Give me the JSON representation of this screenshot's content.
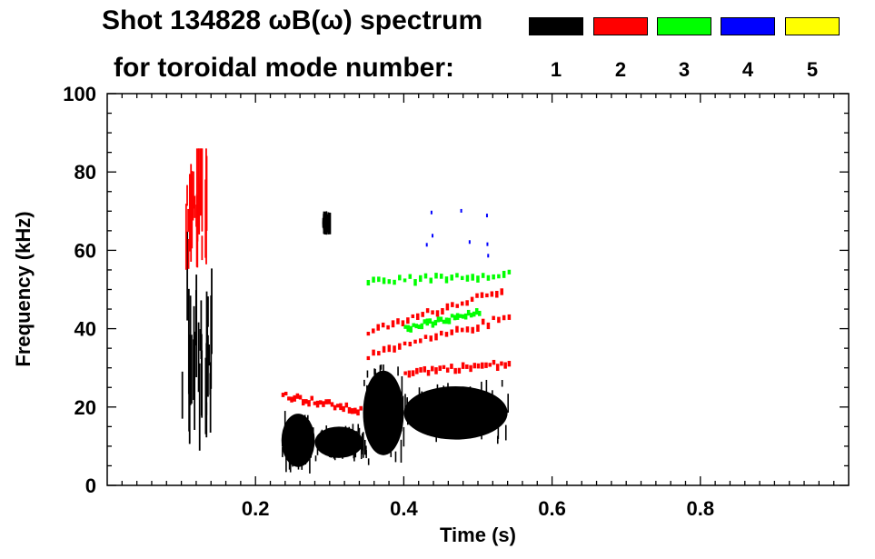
{
  "header": {
    "title_line1": "Shot 134828 ωB(ω) spectrum",
    "title_line2": "for toroidal mode number:"
  },
  "chart_data": {
    "type": "heatmap",
    "xlabel": "Time (s)",
    "ylabel": "Frequency (kHz)",
    "xlim": [
      0.0,
      1.0
    ],
    "ylim": [
      0,
      100
    ],
    "x_ticks": [
      0.2,
      0.4,
      0.6,
      0.8
    ],
    "x_tick_labels": [
      "0.2",
      "0.4",
      "0.6",
      "0.8"
    ],
    "y_ticks": [
      0,
      20,
      40,
      60,
      80,
      100
    ],
    "y_tick_labels": [
      "0",
      "20",
      "40",
      "60",
      "80",
      "100"
    ],
    "legend": {
      "placement": "top",
      "entries": [
        {
          "label": "1",
          "color": "#000000"
        },
        {
          "label": "2",
          "color": "#ff0000"
        },
        {
          "label": "3",
          "color": "#00ff00"
        },
        {
          "label": "4",
          "color": "#0000ff"
        },
        {
          "label": "5",
          "color": "#ffff00"
        }
      ]
    },
    "features": [
      {
        "mode": "1",
        "kind": "band",
        "t": [
          0.1,
          0.14
        ],
        "f": [
          5,
          75
        ]
      },
      {
        "mode": "1",
        "kind": "blob",
        "t": [
          0.235,
          0.28
        ],
        "f": [
          3,
          20
        ]
      },
      {
        "mode": "1",
        "kind": "blob",
        "t": [
          0.28,
          0.345
        ],
        "f": [
          6,
          16
        ]
      },
      {
        "mode": "1",
        "kind": "blob",
        "t": [
          0.345,
          0.4
        ],
        "f": [
          5,
          32
        ]
      },
      {
        "mode": "1",
        "kind": "blob",
        "t": [
          0.4,
          0.54
        ],
        "f": [
          10,
          27
        ]
      },
      {
        "mode": "1",
        "kind": "blob",
        "t": [
          0.29,
          0.3
        ],
        "f": [
          64,
          70
        ]
      },
      {
        "mode": "2",
        "kind": "band",
        "t": [
          0.105,
          0.135
        ],
        "f": [
          55,
          86
        ]
      },
      {
        "mode": "2",
        "kind": "line",
        "t": [
          0.235,
          0.34
        ],
        "f": [
          23,
          19
        ]
      },
      {
        "mode": "2",
        "kind": "line",
        "t": [
          0.35,
          0.53
        ],
        "f": [
          39,
          50
        ]
      },
      {
        "mode": "2",
        "kind": "line",
        "t": [
          0.35,
          0.54
        ],
        "f": [
          33,
          43
        ]
      },
      {
        "mode": "2",
        "kind": "line",
        "t": [
          0.4,
          0.54
        ],
        "f": [
          29,
          31
        ]
      },
      {
        "mode": "3",
        "kind": "line",
        "t": [
          0.35,
          0.54
        ],
        "f": [
          52,
          54
        ]
      },
      {
        "mode": "3",
        "kind": "line",
        "t": [
          0.4,
          0.5
        ],
        "f": [
          40,
          44
        ]
      },
      {
        "mode": "4",
        "kind": "dots",
        "t": [
          0.42,
          0.52
        ],
        "f": [
          58,
          72
        ]
      }
    ]
  }
}
